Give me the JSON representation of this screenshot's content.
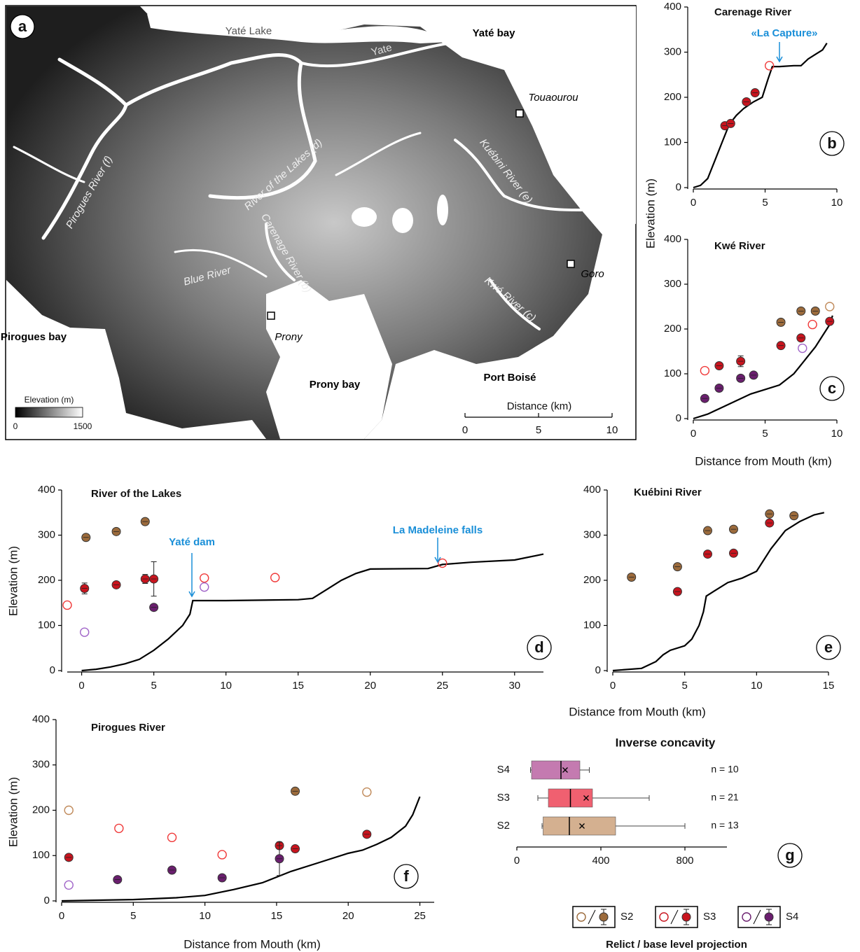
{
  "map": {
    "panel": "a",
    "labels": [
      "Yaté Lake",
      "Yaté bay",
      "Yate",
      "Touaourou",
      "Kuébini River (e)",
      "River of the Lakes (d)",
      "Pirogues River (f)",
      "Carenage River (b)",
      "Blue River",
      "Kwé River (c)",
      "Goro",
      "Pirogues bay",
      "Prony",
      "Prony bay",
      "Port Boisé"
    ],
    "colorbar": {
      "title": "Elevation (m)",
      "ticks": [
        0,
        1500
      ]
    },
    "scale": {
      "title": "Distance (km)",
      "ticks": [
        0,
        5,
        10
      ]
    }
  },
  "legend": {
    "items": [
      "S2",
      "S3",
      "S4"
    ],
    "colors": [
      "#9c6b3c",
      "#c8141e",
      "#6a1e6e"
    ],
    "caption": "Relict / base level projection"
  },
  "chart_data": [
    {
      "type": "line",
      "panel": "b",
      "title": "Carenage River",
      "ylabel": "Elevation (m)",
      "annotations": [
        "«La Capture»"
      ],
      "xlim": [
        0,
        10
      ],
      "xticks": [
        0,
        5,
        10
      ],
      "ylim": [
        0,
        400
      ],
      "yticks": [
        0,
        100,
        200,
        300,
        400
      ],
      "series": [
        {
          "type": "line",
          "color": "#000000",
          "x": [
            0,
            0.5,
            1,
            1.5,
            2,
            2.5,
            3,
            3.5,
            4.2,
            4.8,
            5.2,
            5.5,
            6,
            7,
            7.5,
            8,
            8.5,
            9,
            9.3
          ],
          "values": [
            0,
            5,
            20,
            60,
            100,
            140,
            160,
            175,
            190,
            200,
            240,
            268,
            268,
            270,
            270,
            285,
            295,
            305,
            320
          ]
        },
        {
          "type": "scatter",
          "marker": "filled",
          "color": "#c8141e",
          "x": [
            2.2,
            2.6,
            3.7,
            4.3
          ],
          "values": [
            137,
            142,
            190,
            210
          ]
        },
        {
          "type": "scatter",
          "marker": "open",
          "color": "#f03a3a",
          "x": [
            5.3
          ],
          "values": [
            270
          ]
        }
      ]
    },
    {
      "type": "line",
      "panel": "c",
      "title": "Kwé River",
      "xlabel": "Distance from Mouth (km)",
      "xlim": [
        0,
        10
      ],
      "xticks": [
        0,
        5,
        10
      ],
      "ylim": [
        0,
        400
      ],
      "yticks": [
        0,
        100,
        200,
        300,
        400
      ],
      "series": [
        {
          "type": "line",
          "color": "#000000",
          "x": [
            0,
            1,
            2,
            3,
            4,
            5,
            6,
            7,
            7.5,
            8,
            8.5,
            9,
            9.5,
            9.7
          ],
          "values": [
            0,
            10,
            25,
            40,
            55,
            65,
            75,
            100,
            120,
            140,
            160,
            185,
            210,
            230
          ]
        },
        {
          "type": "scatter",
          "marker": "filled",
          "color": "#9c6b3c",
          "x": [
            6.1,
            7.5,
            8.5
          ],
          "values": [
            215,
            240,
            240
          ]
        },
        {
          "type": "scatter",
          "marker": "open",
          "color": "#c08a5a",
          "x": [
            9.5
          ],
          "values": [
            250
          ]
        },
        {
          "type": "scatter",
          "marker": "filled",
          "color": "#c8141e",
          "x": [
            1.8,
            3.3,
            6.1,
            7.5,
            9.5
          ],
          "values": [
            118,
            128,
            163,
            180,
            217
          ],
          "errors": [
            4,
            12,
            4,
            4,
            4
          ]
        },
        {
          "type": "scatter",
          "marker": "open",
          "color": "#f03a3a",
          "x": [
            0.8,
            8.3
          ],
          "values": [
            107,
            210
          ]
        },
        {
          "type": "scatter",
          "marker": "filled",
          "color": "#6a1e6e",
          "x": [
            0.8,
            1.8,
            3.3,
            4.2
          ],
          "values": [
            45,
            68,
            90,
            97
          ]
        },
        {
          "type": "scatter",
          "marker": "open",
          "color": "#a064c8",
          "x": [
            7.6
          ],
          "values": [
            157
          ]
        }
      ]
    },
    {
      "type": "line",
      "panel": "d",
      "title": "River of the Lakes",
      "ylabel": "Elevation (m)",
      "annotations": [
        "Yaté dam",
        "La Madeleine falls"
      ],
      "xlim": [
        -1,
        32
      ],
      "xticks": [
        0,
        5,
        10,
        15,
        20,
        25,
        30
      ],
      "ylim": [
        0,
        400
      ],
      "yticks": [
        0,
        100,
        200,
        300,
        400
      ],
      "series": [
        {
          "type": "line",
          "color": "#000000",
          "x": [
            0,
            1,
            2,
            3,
            4,
            5,
            6,
            7,
            7.5,
            7.7,
            10,
            15,
            16,
            17,
            18,
            19,
            20,
            24,
            25,
            27,
            30,
            32
          ],
          "values": [
            0,
            3,
            8,
            15,
            25,
            45,
            70,
            100,
            125,
            155,
            155,
            157,
            160,
            180,
            200,
            215,
            225,
            226,
            235,
            240,
            245,
            258
          ]
        },
        {
          "type": "scatter",
          "marker": "filled",
          "color": "#9c6b3c",
          "x": [
            0.3,
            2.4,
            4.4
          ],
          "values": [
            295,
            308,
            330
          ],
          "errors": [
            6,
            4,
            4
          ]
        },
        {
          "type": "scatter",
          "marker": "filled",
          "color": "#c8141e",
          "x": [
            0.2,
            2.4,
            4.4,
            5
          ],
          "values": [
            182,
            190,
            203,
            203
          ],
          "errors": [
            12,
            6,
            10,
            38
          ]
        },
        {
          "type": "scatter",
          "marker": "open",
          "color": "#f03a3a",
          "x": [
            -1,
            8.5,
            13.4,
            25
          ],
          "values": [
            145,
            205,
            206,
            238
          ]
        },
        {
          "type": "scatter",
          "marker": "filled",
          "color": "#6a1e6e",
          "x": [
            5
          ],
          "values": [
            140
          ]
        },
        {
          "type": "scatter",
          "marker": "open",
          "color": "#a064c8",
          "x": [
            0.2,
            8.5
          ],
          "values": [
            85,
            185
          ]
        }
      ]
    },
    {
      "type": "line",
      "panel": "e",
      "title": "Kuébini River",
      "xlabel": "Distance from Mouth (km)",
      "xlim": [
        0,
        15
      ],
      "xticks": [
        0,
        5,
        10,
        15
      ],
      "ylim": [
        0,
        400
      ],
      "yticks": [
        0,
        100,
        200,
        300,
        400
      ],
      "series": [
        {
          "type": "line",
          "color": "#000000",
          "x": [
            0,
            2,
            3,
            3.5,
            4,
            5,
            5.5,
            6,
            6.3,
            6.5,
            7,
            8,
            9,
            10,
            11,
            12,
            13,
            14,
            14.7
          ],
          "values": [
            0,
            5,
            20,
            35,
            45,
            55,
            70,
            100,
            130,
            165,
            175,
            195,
            205,
            220,
            270,
            310,
            330,
            345,
            350
          ]
        },
        {
          "type": "scatter",
          "marker": "filled",
          "color": "#9c6b3c",
          "x": [
            1.3,
            4.5,
            6.6,
            8.4,
            10.9,
            12.6
          ],
          "values": [
            207,
            230,
            310,
            313,
            347,
            343
          ]
        },
        {
          "type": "scatter",
          "marker": "filled",
          "color": "#c8141e",
          "x": [
            4.5,
            6.6,
            8.4,
            10.9
          ],
          "values": [
            175,
            258,
            260,
            327
          ]
        }
      ]
    },
    {
      "type": "line",
      "panel": "f",
      "title": "Pirogues River",
      "ylabel": "Elevation (m)",
      "xlabel": "Distance from Mouth (km)",
      "xlim": [
        0,
        26
      ],
      "xticks": [
        0,
        5,
        10,
        15,
        20,
        25
      ],
      "ylim": [
        0,
        400
      ],
      "yticks": [
        0,
        100,
        200,
        300,
        400
      ],
      "series": [
        {
          "type": "line",
          "color": "#000000",
          "x": [
            0,
            5,
            8,
            10,
            12,
            14,
            16,
            18,
            20,
            21,
            22,
            23,
            24,
            24.5,
            25
          ],
          "values": [
            0,
            3,
            7,
            12,
            25,
            40,
            65,
            85,
            105,
            112,
            125,
            140,
            165,
            190,
            230
          ]
        },
        {
          "type": "scatter",
          "marker": "filled",
          "color": "#9c6b3c",
          "x": [
            16.3
          ],
          "values": [
            242
          ]
        },
        {
          "type": "scatter",
          "marker": "open",
          "color": "#c08a5a",
          "x": [
            0.5,
            21.3
          ],
          "values": [
            200,
            240
          ]
        },
        {
          "type": "scatter",
          "marker": "filled",
          "color": "#c8141e",
          "x": [
            0.5,
            15.2,
            16.3,
            21.3
          ],
          "values": [
            96,
            122,
            115,
            147
          ]
        },
        {
          "type": "scatter",
          "marker": "open",
          "color": "#f03a3a",
          "x": [
            4,
            7.7,
            11.2
          ],
          "values": [
            160,
            140,
            102
          ]
        },
        {
          "type": "scatter",
          "marker": "filled",
          "color": "#6a1e6e",
          "x": [
            3.9,
            7.7,
            11.2,
            15.2
          ],
          "values": [
            47,
            68,
            51,
            93
          ],
          "errors": [
            5,
            5,
            5,
            37
          ]
        },
        {
          "type": "scatter",
          "marker": "open",
          "color": "#a064c8",
          "x": [
            0.5
          ],
          "values": [
            35
          ]
        }
      ]
    },
    {
      "type": "box",
      "panel": "g",
      "title": "Inverse concavity",
      "categories": [
        "S4",
        "S3",
        "S2"
      ],
      "colors": [
        "#c47ab0",
        "#f06070",
        "#d4b090"
      ],
      "min": [
        65,
        100,
        120
      ],
      "q1": [
        70,
        150,
        125
      ],
      "median": [
        210,
        255,
        250
      ],
      "mean": [
        230,
        330,
        310
      ],
      "q3": [
        300,
        360,
        470
      ],
      "max": [
        345,
        630,
        800
      ],
      "n_labels": [
        "n = 10",
        "n = 21",
        "n = 13"
      ],
      "xlim": [
        0,
        1000
      ],
      "xticks": [
        0,
        400,
        800
      ]
    }
  ]
}
